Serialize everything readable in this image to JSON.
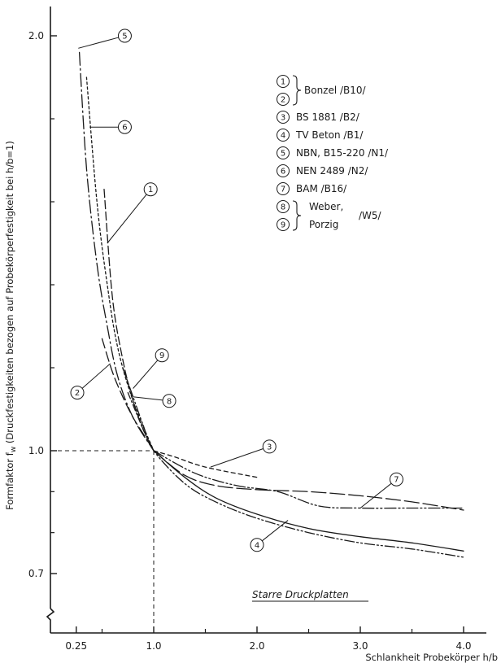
{
  "chart_data": {
    "type": "line",
    "title": "",
    "xlabel": "Schlankheit Probekörper h/b",
    "ylabel": "Formfaktor f_w (Druckfestigkeiten bezogen auf Probekörperfestigkeit bei h/b=1)",
    "ylabel_prefix": "Formfaktor f",
    "ylabel_subscript": "w",
    "ylabel_suffix": " (Druckfestigkeiten bezogen auf Probekörperfestigkeit bei h/b=1)",
    "x_ticks": [
      0.25,
      1.0,
      2.0,
      3.0,
      4.0
    ],
    "x_tick_labels": [
      "0.25",
      "1.0",
      "2.0",
      "3.0",
      "4.0"
    ],
    "y_ticks": [
      0.7,
      1.0,
      2.0
    ],
    "y_tick_labels": [
      "0.7",
      "1.0",
      "2.0"
    ],
    "xlim": [
      0,
      4.25
    ],
    "ylim": [
      0.62,
      2.08
    ],
    "axis_break": true,
    "grid": false,
    "legend_position": "top-right",
    "reference_lines": [
      {
        "x": 1.0,
        "y": 1.0,
        "style": "dashed"
      }
    ],
    "annotation": "Starre Druckplatten",
    "legend": [
      {
        "marks": [
          "1",
          "2"
        ],
        "text": "Bonzel /B10/",
        "grouped": true
      },
      {
        "marks": [
          "3"
        ],
        "text": "BS 1881 /B2/"
      },
      {
        "marks": [
          "4"
        ],
        "text": "TV Beton /B1/"
      },
      {
        "marks": [
          "5"
        ],
        "text": "NBN, B15-220 /N1/"
      },
      {
        "marks": [
          "6"
        ],
        "text": "NEN 2489 /N2/"
      },
      {
        "marks": [
          "7"
        ],
        "text": "BAM /B16/"
      },
      {
        "marks": [
          "8",
          "9"
        ],
        "text_lines": [
          "Weber,",
          "Porzig"
        ],
        "text": "/W5/",
        "grouped": true
      }
    ],
    "series": [
      {
        "id": "1",
        "dash": "10 4",
        "x": [
          0.52,
          0.6,
          0.7,
          0.8,
          0.9,
          1.0
        ],
        "y": [
          1.63,
          1.37,
          1.22,
          1.12,
          1.05,
          1.0
        ]
      },
      {
        "id": "2",
        "dash": "12 5",
        "x": [
          0.5,
          0.6,
          0.7,
          0.8,
          0.9,
          1.0
        ],
        "y": [
          1.27,
          1.19,
          1.13,
          1.08,
          1.04,
          1.0
        ]
      },
      {
        "id": "3",
        "dash": "5 4",
        "x": [
          1.0,
          1.2,
          1.5,
          2.0
        ],
        "y": [
          1.0,
          0.985,
          0.96,
          0.935
        ]
      },
      {
        "id": "4",
        "dash": "",
        "x": [
          1.0,
          1.3,
          1.6,
          2.0,
          2.5,
          3.0,
          3.5,
          4.0
        ],
        "y": [
          1.0,
          0.935,
          0.885,
          0.845,
          0.81,
          0.79,
          0.775,
          0.755
        ]
      },
      {
        "id": "5",
        "dash": "16 4 2 4",
        "x": [
          0.28,
          0.35,
          0.45,
          0.55,
          0.65,
          0.8,
          1.0
        ],
        "y": [
          1.96,
          1.68,
          1.45,
          1.3,
          1.18,
          1.08,
          1.0
        ]
      },
      {
        "id": "6",
        "dash": "3 3",
        "x": [
          0.35,
          0.45,
          0.55,
          0.65,
          0.8,
          1.0
        ],
        "y": [
          1.9,
          1.6,
          1.4,
          1.25,
          1.12,
          1.0
        ]
      },
      {
        "id": "7",
        "dash": "18 5",
        "x": [
          1.0,
          1.3,
          1.6,
          2.0,
          2.5,
          3.0,
          3.5,
          4.0
        ],
        "y": [
          1.0,
          0.94,
          0.915,
          0.905,
          0.9,
          0.89,
          0.875,
          0.855
        ]
      },
      {
        "id": "8",
        "dash": "8 3 2 3",
        "x": [
          0.75,
          0.8,
          0.85,
          0.9,
          0.95,
          1.0
        ],
        "y": [
          1.14,
          1.11,
          1.08,
          1.05,
          1.025,
          1.0
        ]
      },
      {
        "id": "9",
        "dash": "12 3 2 3 2 3",
        "x": [
          0.7,
          0.8,
          0.9,
          1.0,
          1.3,
          1.6,
          2.0,
          2.5,
          3.0,
          3.5,
          4.0
        ],
        "y": [
          1.2,
          1.13,
          1.06,
          1.0,
          0.92,
          0.875,
          0.835,
          0.8,
          0.775,
          0.76,
          0.74
        ]
      },
      {
        "id": "9b",
        "dash": "14 3 2 3 2 3",
        "x": [
          1.0,
          1.4,
          1.8,
          2.2,
          2.6,
          3.0,
          3.5,
          4.0
        ],
        "y": [
          1.0,
          0.945,
          0.915,
          0.9,
          0.865,
          0.86,
          0.86,
          0.86
        ]
      }
    ],
    "callouts": [
      {
        "label": "5",
        "target": [
          0.27,
          1.97
        ],
        "at": [
          0.72,
          2.0
        ]
      },
      {
        "label": "6",
        "target": [
          0.38,
          1.78
        ],
        "at": [
          0.72,
          1.78
        ]
      },
      {
        "label": "1",
        "target": [
          0.55,
          1.5
        ],
        "at": [
          0.97,
          1.63
        ]
      },
      {
        "label": "9",
        "target": [
          0.8,
          1.15
        ],
        "at": [
          1.08,
          1.23
        ]
      },
      {
        "label": "2",
        "target": [
          0.58,
          1.21
        ],
        "at": [
          0.26,
          1.14
        ]
      },
      {
        "label": "8",
        "target": [
          0.8,
          1.13
        ],
        "at": [
          1.15,
          1.12
        ]
      },
      {
        "label": "3",
        "target": [
          1.55,
          0.96
        ],
        "at": [
          2.12,
          1.01
        ]
      },
      {
        "label": "7",
        "target": [
          3.0,
          0.86
        ],
        "at": [
          3.35,
          0.93
        ]
      },
      {
        "label": "4",
        "target": [
          2.3,
          0.83
        ],
        "at": [
          2.0,
          0.77
        ]
      }
    ]
  }
}
